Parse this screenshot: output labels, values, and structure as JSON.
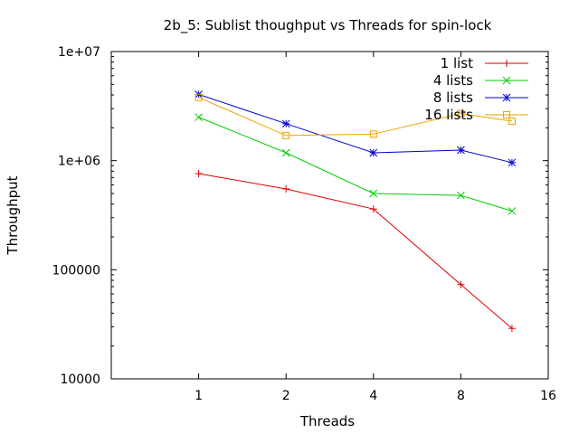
{
  "chart_data": {
    "type": "line",
    "title": "2b_5: Sublist thoughput vs Threads for spin-lock",
    "xlabel": "Threads",
    "ylabel": "Throughput",
    "xscale": "log2",
    "yscale": "log10",
    "xlim": [
      0.5,
      16
    ],
    "ylim": [
      10000,
      10000000
    ],
    "xticks": [
      1,
      2,
      4,
      8,
      16
    ],
    "xtick_labels": [
      "1",
      "2",
      "4",
      "8",
      "16"
    ],
    "yticks": [
      10000,
      100000,
      1000000,
      10000000
    ],
    "ytick_labels": [
      "10000",
      "100000",
      "1e+06",
      "1e+07"
    ],
    "grid": false,
    "legend_position": "top-right",
    "series": [
      {
        "name": "1 list",
        "color": "#dd0000",
        "marker": "plus",
        "x": [
          1,
          2,
          4,
          8,
          12
        ],
        "y": [
          760000,
          550000,
          360000,
          73000,
          29000
        ]
      },
      {
        "name": "4 lists",
        "color": "#00cc00",
        "marker": "cross",
        "x": [
          1,
          2,
          4,
          8,
          12
        ],
        "y": [
          2500000,
          1180000,
          500000,
          480000,
          345000
        ]
      },
      {
        "name": "8 lists",
        "color": "#0000cc",
        "marker": "asterisk",
        "x": [
          1,
          2,
          4,
          8,
          12
        ],
        "y": [
          4050000,
          2180000,
          1180000,
          1250000,
          960000
        ]
      },
      {
        "name": "16 lists",
        "color": "#f0a000",
        "marker": "box",
        "x": [
          1,
          2,
          4,
          8,
          12
        ],
        "y": [
          3800000,
          1700000,
          1750000,
          2700000,
          2300000
        ]
      }
    ]
  }
}
